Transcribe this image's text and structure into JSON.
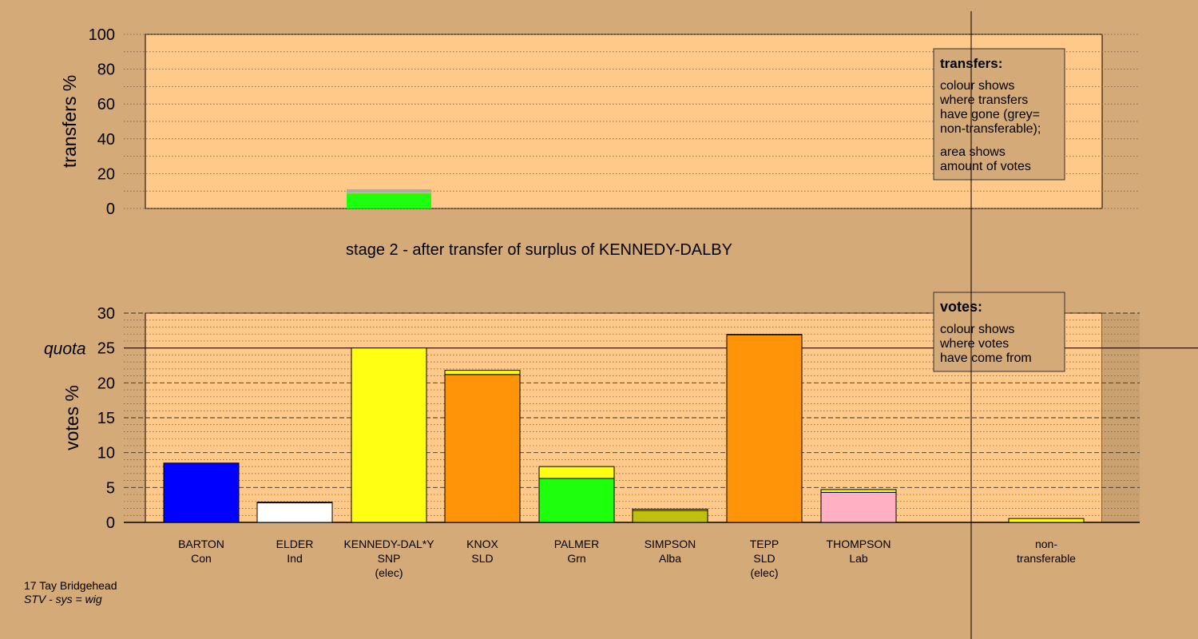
{
  "footer": {
    "constituency": "17 Tay Bridgehead",
    "system": "STV - sys = wig"
  },
  "chart_data": [
    {
      "type": "bar",
      "title": "stage 2 - after transfer of surplus of KENNEDY-DALBY",
      "ylabel": "transfers %",
      "ylim": [
        0,
        100
      ],
      "yticks": [
        0,
        20,
        40,
        60,
        80,
        100
      ],
      "grid": true,
      "categories": [
        "BARTON",
        "ELDER",
        "KENNEDY-DAL*Y",
        "KNOX",
        "PALMER",
        "SIMPSON",
        "TEPP",
        "THOMPSON",
        "non-transferable"
      ],
      "transfer_from": "KENNEDY-DAL*Y",
      "transfer_segments": [
        {
          "to": "PALMER",
          "color": "#1eff0e",
          "value": 8.7
        },
        {
          "to": "TEPP",
          "color": "#ff9408",
          "value": 0.1
        },
        {
          "to": "THOMPSON",
          "color": "#ffb1c3",
          "value": 0.2
        },
        {
          "to": "non-transferable",
          "color": "#aaaaaa",
          "value": 2.0
        }
      ],
      "legend": {
        "position": "top-right",
        "title": "transfers:",
        "lines1": [
          "colour shows",
          "where transfers",
          "have gone (grey=",
          "non-transferable);"
        ],
        "lines2": [
          "area shows",
          "amount of votes"
        ]
      }
    },
    {
      "type": "bar",
      "stacked": true,
      "ylabel": "votes %",
      "ylim": [
        0,
        30
      ],
      "yticks": [
        0,
        5,
        10,
        15,
        20,
        25,
        30
      ],
      "quota": 25,
      "quota_label": "quota",
      "grid": true,
      "candidates": [
        {
          "name": "BARTON",
          "party": "Con",
          "status": "",
          "segments": [
            {
              "color": "#0000ff",
              "value": 8.5
            }
          ]
        },
        {
          "name": "ELDER",
          "party": "Ind",
          "status": "",
          "segments": [
            {
              "color": "#ffffff",
              "value": 2.8
            },
            {
              "color": "#ffff14",
              "value": 0.1
            }
          ]
        },
        {
          "name": "KENNEDY-DAL*Y",
          "party": "SNP",
          "status": "(elec)",
          "segments": [
            {
              "color": "#ffff14",
              "value": 25.0
            }
          ]
        },
        {
          "name": "KNOX",
          "party": "SLD",
          "status": "",
          "segments": [
            {
              "color": "#ff9408",
              "value": 21.2
            },
            {
              "color": "#ffff14",
              "value": 0.6
            }
          ]
        },
        {
          "name": "PALMER",
          "party": "Grn",
          "status": "",
          "segments": [
            {
              "color": "#1eff0e",
              "value": 6.3
            },
            {
              "color": "#ffff14",
              "value": 1.7
            }
          ]
        },
        {
          "name": "SIMPSON",
          "party": "Alba",
          "status": "",
          "segments": [
            {
              "color": "#c0c010",
              "value": 1.7
            },
            {
              "color": "#ffff14",
              "value": 0.2
            }
          ]
        },
        {
          "name": "TEPP",
          "party": "SLD",
          "status": "(elec)",
          "segments": [
            {
              "color": "#ff9408",
              "value": 26.9
            },
            {
              "color": "#ffff14",
              "value": 0.05
            }
          ]
        },
        {
          "name": "THOMPSON",
          "party": "Lab",
          "status": "",
          "segments": [
            {
              "color": "#ffb1c3",
              "value": 4.3
            },
            {
              "color": "#ffff14",
              "value": 0.4
            }
          ]
        }
      ],
      "nontransferable": {
        "label_line1": "non-",
        "label_line2": "transferable",
        "segments": [
          {
            "color": "#ffff14",
            "value": 0.55
          }
        ]
      },
      "legend": {
        "position": "top-right",
        "title": "votes:",
        "lines": [
          "colour shows",
          "where votes",
          "have come from"
        ]
      }
    }
  ]
}
